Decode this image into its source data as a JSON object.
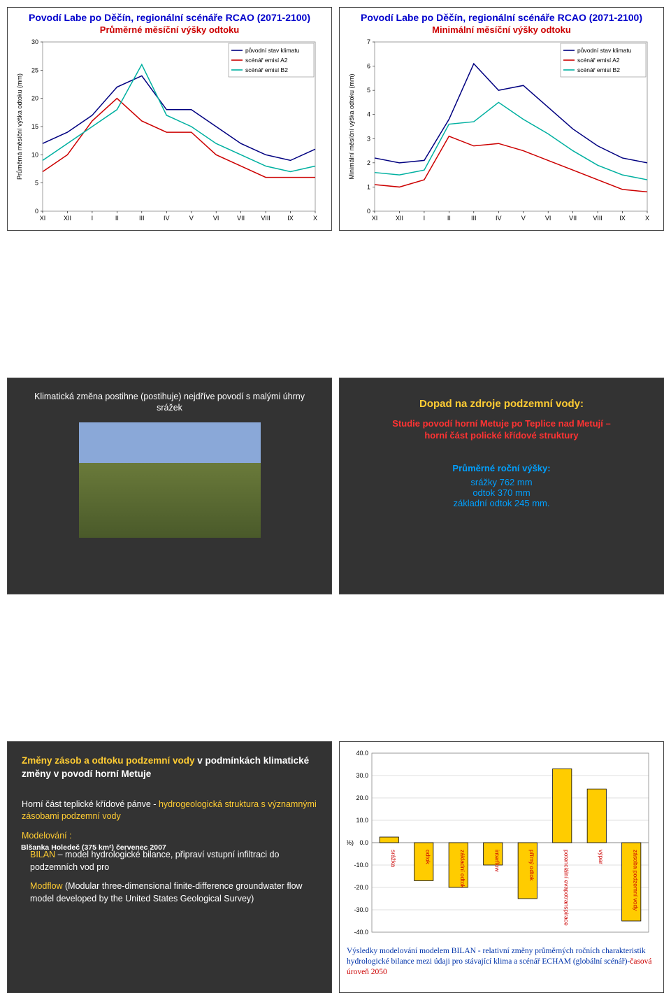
{
  "chart1": {
    "title": "Povodí Labe po Děčín, regionální scénáře RCAO (2071-2100)",
    "subtitle": "Průměrné měsíční výšky odtoku",
    "ylabel": "Průměrná měsíční výška odtoku (mm)",
    "x_categories": [
      "XI",
      "XII",
      "I",
      "II",
      "III",
      "IV",
      "V",
      "VI",
      "VII",
      "VIII",
      "IX",
      "X"
    ],
    "ylim": [
      0,
      30
    ],
    "ytick_step": 5,
    "legend": [
      {
        "label": "původní stav klimatu",
        "color": "#000080"
      },
      {
        "label": "scénář emisí A2",
        "color": "#cc0000"
      },
      {
        "label": "scénář emisí B2",
        "color": "#00b0a0"
      }
    ],
    "series": [
      {
        "color": "#000080",
        "width": 1.5,
        "values": [
          12,
          14,
          17,
          22,
          24,
          18,
          18,
          15,
          12,
          10,
          9,
          11
        ]
      },
      {
        "color": "#cc0000",
        "width": 1.5,
        "values": [
          7,
          10,
          16,
          20,
          16,
          14,
          14,
          10,
          8,
          6,
          6,
          6
        ]
      },
      {
        "color": "#00b0a0",
        "width": 1.5,
        "values": [
          9,
          12,
          15,
          18,
          26,
          17,
          15,
          12,
          10,
          8,
          7,
          8
        ]
      }
    ],
    "background": "#ffffff",
    "grid": false,
    "title_color": "#0000cc",
    "subtitle_color": "#cc0000",
    "font_size_axis": 9,
    "font_size_title": 14
  },
  "chart2": {
    "title": "Povodí Labe po Děčín, regionální scénáře RCAO (2071-2100)",
    "subtitle": "Minimální měsíční výšky odtoku",
    "ylabel": "Minimální měsíční výška odtoku (mm)",
    "x_categories": [
      "XI",
      "XII",
      "I",
      "II",
      "III",
      "IV",
      "V",
      "VI",
      "VII",
      "VIII",
      "IX",
      "X"
    ],
    "ylim": [
      0,
      7
    ],
    "ytick_step": 1,
    "legend": [
      {
        "label": "původní stav klimatu",
        "color": "#000080"
      },
      {
        "label": "scénář emisí A2",
        "color": "#cc0000"
      },
      {
        "label": "scénář emisí B2",
        "color": "#00b0a0"
      }
    ],
    "series": [
      {
        "color": "#000080",
        "width": 1.5,
        "values": [
          2.2,
          2.0,
          2.1,
          3.8,
          6.1,
          5.0,
          5.2,
          4.3,
          3.4,
          2.7,
          2.2,
          2.0
        ]
      },
      {
        "color": "#cc0000",
        "width": 1.5,
        "values": [
          1.1,
          1.0,
          1.3,
          3.1,
          2.7,
          2.8,
          2.5,
          2.1,
          1.7,
          1.3,
          0.9,
          0.8
        ]
      },
      {
        "color": "#00b0a0",
        "width": 1.5,
        "values": [
          1.6,
          1.5,
          1.7,
          3.6,
          3.7,
          4.5,
          3.8,
          3.2,
          2.5,
          1.9,
          1.5,
          1.3
        ]
      }
    ],
    "background": "#ffffff",
    "grid": false,
    "title_color": "#0000cc",
    "subtitle_color": "#cc0000",
    "font_size_axis": 9,
    "font_size_title": 14
  },
  "panel3": {
    "heading": "Klimatická změna postihne (postihuje) nejdříve povodí s malými úhrny srážek",
    "caption": "Blšanka Holedeč (375 km²) červenec 2007"
  },
  "panel4": {
    "heading": "Dopad na zdroje podzemní vody:",
    "study_l1": "Studie povodí horní Metuje po Teplice nad Metují –",
    "study_l2": "horní část polické křídové struktury",
    "metrics_title": "Průměrné roční výšky:",
    "m1": "srážky 762 mm",
    "m2": "odtok 370 mm",
    "m3": "základní odtok 245 mm.",
    "metrics_color": "#00a0ff"
  },
  "panel5": {
    "title_pre": "Změny zásob a odtoku podzemní vody",
    "title_post": " v podmínkách klimatické změny v povodí horní Metuje",
    "p1_pre": "Horní část teplické křídové pánve - ",
    "p1_hl": "hydrogeologická struktura s významnými zásobami podzemní vody",
    "p2_hl": "Modelování :",
    "p3_hl": "BILAN",
    "p3_rest": " – model hydrologické bilance, připraví vstupní infiltraci do podzemních vod pro",
    "p4_hl": "Modflow",
    "p4_rest": " (Modular three-dimensional finite-difference groundwater flow model developed by the United States Geological Survey)"
  },
  "chart6": {
    "type": "bar",
    "categories": [
      "srážka",
      "odtok",
      "základní odtok",
      "interflow",
      "přímý odtok",
      "potenciální evapotranspirace",
      "výpar",
      "zásoba podzemní vody"
    ],
    "values": [
      2.5,
      -17,
      -20,
      -10,
      -25,
      33,
      24,
      -35
    ],
    "bar_color": "#ffcc00",
    "bar_border": "#000000",
    "ylim": [
      -40,
      40
    ],
    "ytick_step": 10,
    "ylabel": "(%)",
    "background": "#ffffff",
    "grid_color": "#c0c0c0",
    "label_fontsize": 8.5,
    "caption_pre": "Výsledky modelování modelem BILAN - relativní změny průměrných ročních charakteristik hydrologické bilance mezi údaji pro stávající klima a scénář ECHAM (globální scénář)-",
    "caption_red": "časová úroveň 2050"
  }
}
